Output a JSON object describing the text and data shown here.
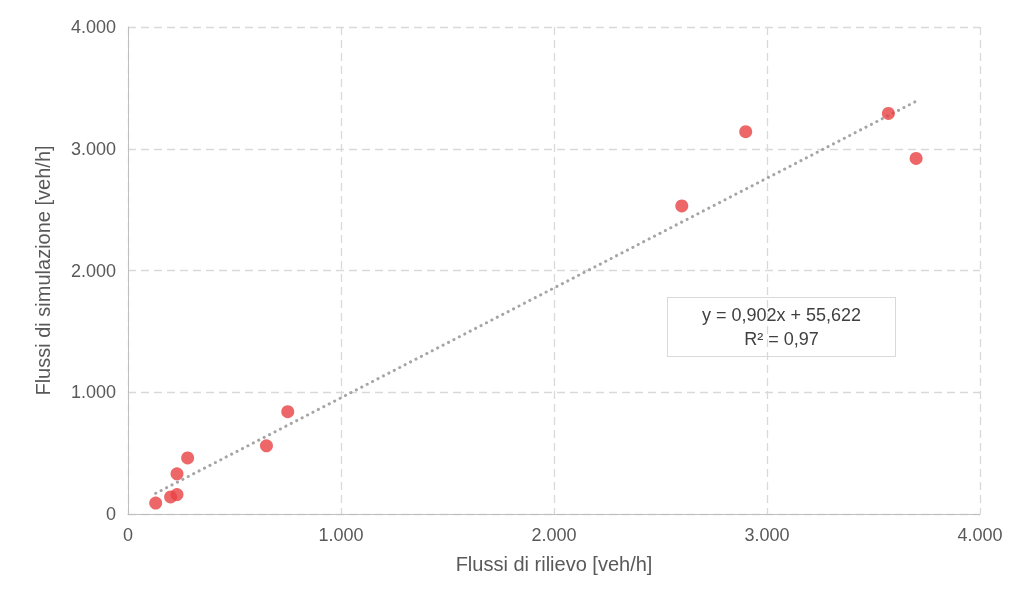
{
  "chart_data": {
    "type": "scatter",
    "xlabel": "Flussi di rilievo [veh/h]",
    "ylabel": "Flussi di simulazione [veh/h]",
    "series": [
      {
        "color": "#e84142",
        "marker": "circle",
        "x": [
          130,
          200,
          230,
          230,
          280,
          650,
          750,
          2600,
          2900,
          3570,
          3700
        ],
        "values": [
          90,
          140,
          160,
          330,
          460,
          560,
          840,
          2530,
          3140,
          3290,
          2920
        ]
      },
      {
        "type": "line",
        "color": "#a5a5a5",
        "line_style": "dotted",
        "marker": "none",
        "x": [
          130,
          3700
        ],
        "values": [
          170,
          3390
        ]
      }
    ],
    "xlim": [
      0,
      4000
    ],
    "xticks": [
      0,
      {
        "value": 1000,
        "label": "1.000"
      },
      {
        "value": 2000,
        "label": "2.000"
      },
      {
        "value": 3000,
        "label": "3.000"
      },
      {
        "value": 4000,
        "label": "4.000"
      }
    ],
    "ylim": [
      0,
      4000
    ],
    "yticks": [
      0,
      {
        "value": 1000,
        "label": "1.000"
      },
      {
        "value": 2000,
        "label": "2.000"
      },
      {
        "value": 3000,
        "label": "3.000"
      },
      {
        "value": 4000,
        "label": "4.000"
      }
    ],
    "grid": true,
    "annotations": [
      "y = 0,902x + 55,622",
      "R² = 0,97"
    ]
  }
}
